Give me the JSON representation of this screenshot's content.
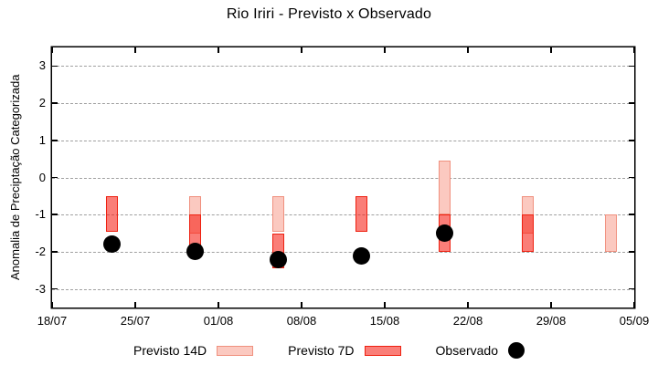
{
  "title": "Rio Iriri - Previsto x Observado",
  "ylabel": "Anomalia de Preciptação Categorizada",
  "legend": {
    "previsto_14d_label": "Previsto 14D",
    "previsto_7d_label": "Previsto 7D",
    "observado_label": "Observado"
  },
  "chart_data": {
    "type": "bar",
    "title": "Rio Iriri - Previsto x Observado",
    "xlabel": "",
    "ylabel": "Anomalia de Preciptação Categorizada",
    "ylim": [
      -3.5,
      3.5
    ],
    "yticks": [
      3,
      2,
      1,
      0,
      -1,
      -2,
      -3
    ],
    "grid": "horizontal dashed gray lines at integer y values",
    "legend_position": "bottom center",
    "x_axis": {
      "unit": "days from 18/07",
      "range": [
        0,
        49
      ],
      "ticks": [
        {
          "pos": 0,
          "label": "18/07"
        },
        {
          "pos": 7,
          "label": "25/07"
        },
        {
          "pos": 14,
          "label": "01/08"
        },
        {
          "pos": 21,
          "label": "08/08"
        },
        {
          "pos": 28,
          "label": "15/08"
        },
        {
          "pos": 35,
          "label": "22/08"
        },
        {
          "pos": 42,
          "label": "29/08"
        },
        {
          "pos": 49,
          "label": "05/09"
        }
      ]
    },
    "series": [
      {
        "name": "Previsto 14D",
        "type": "range_bar",
        "fill": "#fbc9c0",
        "border": "#f0907e"
      },
      {
        "name": "Previsto 7D",
        "type": "range_bar",
        "fill": "#fa7e78",
        "border": "#ee2010",
        "note": "semi-transparent red; darkens to #f7625c where it overlaps Previsto 14D"
      },
      {
        "name": "Observado",
        "type": "point",
        "color": "#000000"
      }
    ],
    "points": [
      {
        "day": 5,
        "date": "23/07",
        "previsto_14d": null,
        "previsto_7d": [
          -0.5,
          -1.45
        ],
        "observado": -1.8
      },
      {
        "day": 12,
        "date": "30/07",
        "previsto_14d": [
          -0.5,
          -1.5
        ],
        "previsto_7d": [
          -1.0,
          -2.0
        ],
        "observado": -2.0
      },
      {
        "day": 19,
        "date": "06/08",
        "previsto_14d": [
          -0.5,
          -1.45
        ],
        "previsto_7d": [
          -1.5,
          -2.45
        ],
        "observado": -2.2
      },
      {
        "day": 26,
        "date": "13/08",
        "previsto_14d": null,
        "previsto_7d": [
          -0.5,
          -1.45
        ],
        "observado": -2.1
      },
      {
        "day": 33,
        "date": "20/08",
        "previsto_14d": [
          0.45,
          -1.0
        ],
        "previsto_7d": [
          -1.0,
          -2.0
        ],
        "observado": -1.5
      },
      {
        "day": 40,
        "date": "27/08",
        "previsto_14d": [
          -0.5,
          -1.5
        ],
        "previsto_7d": [
          -1.0,
          -2.0
        ],
        "observado": null
      },
      {
        "day": 47,
        "date": "03/09",
        "previsto_14d": [
          -1.0,
          -2.0
        ],
        "previsto_7d": null,
        "observado": null
      }
    ]
  }
}
